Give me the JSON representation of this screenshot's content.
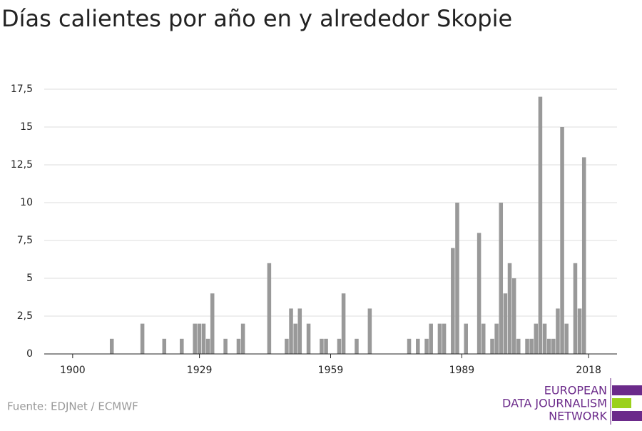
{
  "chart_data": {
    "type": "bar",
    "title": "Días calientes por año en y alrededor Skopie",
    "source": "Fuente: EDJNet / ECMWF",
    "logo": [
      "EUROPEAN",
      "DATA JOURNALISM",
      "NETWORK"
    ],
    "color": "#999999",
    "x": [
      1909,
      1916,
      1921,
      1925,
      1928,
      1929,
      1930,
      1931,
      1932,
      1935,
      1938,
      1939,
      1945,
      1949,
      1950,
      1951,
      1952,
      1954,
      1957,
      1958,
      1961,
      1962,
      1965,
      1968,
      1977,
      1979,
      1981,
      1982,
      1984,
      1985,
      1987,
      1988,
      1990,
      1993,
      1994,
      1996,
      1997,
      1998,
      1999,
      2000,
      2001,
      2002,
      2004,
      2005,
      2006,
      2007,
      2008,
      2009,
      2010,
      2011,
      2012,
      2013,
      2015,
      2016,
      2017
    ],
    "values": [
      1,
      2,
      1,
      1,
      2,
      2,
      2,
      1,
      4,
      1,
      1,
      2,
      6,
      1,
      3,
      2,
      3,
      2,
      1,
      1,
      1,
      4,
      1,
      3,
      1,
      1,
      1,
      2,
      2,
      2,
      7,
      10,
      2,
      8,
      2,
      1,
      2,
      10,
      4,
      6,
      5,
      1,
      1,
      1,
      2,
      17,
      2,
      1,
      1,
      3,
      15,
      2,
      6,
      3,
      13
    ],
    "xlim": [
      1893.5,
      2024.5
    ],
    "xticks": [
      1900,
      1929,
      1959,
      1989,
      2018
    ],
    "ylim": [
      0,
      17.5
    ],
    "yticks": [
      0,
      {
        "value": 2.5,
        "label": "2,5"
      },
      5,
      {
        "value": 7.5,
        "label": "7,5"
      },
      10,
      {
        "value": 12.5,
        "label": "12,5"
      },
      15,
      {
        "value": 17.5,
        "label": "17,5"
      }
    ],
    "grid": true
  }
}
